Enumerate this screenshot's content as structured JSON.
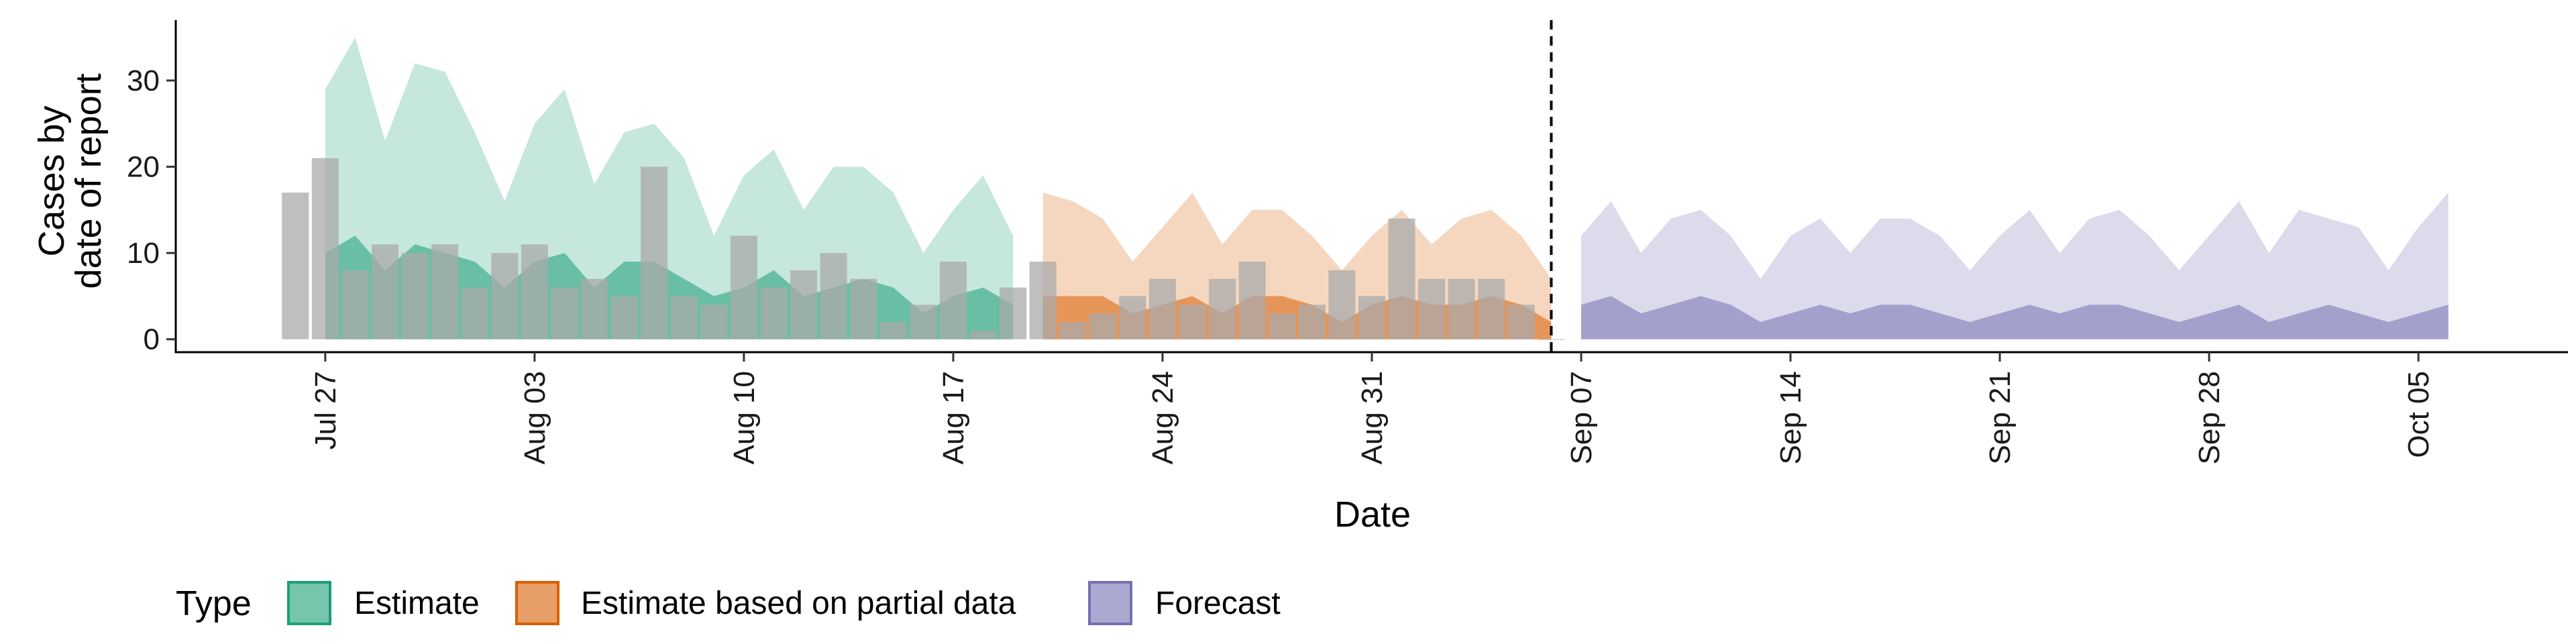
{
  "chart_data": {
    "type": "area",
    "xlabel": "Date",
    "ylabel_lines": [
      "Cases by",
      "date of report"
    ],
    "ylim": [
      -1.5,
      37
    ],
    "y_ticks": [
      0,
      10,
      20,
      30
    ],
    "x_range": [
      "2021-07-22",
      "2021-10-10"
    ],
    "x_ticks": [
      {
        "date": "2021-07-27",
        "label": "Jul 27"
      },
      {
        "date": "2021-08-03",
        "label": "Aug 03"
      },
      {
        "date": "2021-08-10",
        "label": "Aug 10"
      },
      {
        "date": "2021-08-17",
        "label": "Aug 17"
      },
      {
        "date": "2021-08-24",
        "label": "Aug 24"
      },
      {
        "date": "2021-08-31",
        "label": "Aug 31"
      },
      {
        "date": "2021-09-07",
        "label": "Sep 07"
      },
      {
        "date": "2021-09-14",
        "label": "Sep 14"
      },
      {
        "date": "2021-09-21",
        "label": "Sep 21"
      },
      {
        "date": "2021-09-28",
        "label": "Sep 28"
      },
      {
        "date": "2021-10-05",
        "label": "Oct 05"
      }
    ],
    "vline_date": "2021-09-06",
    "legend": {
      "title": "Type",
      "placement": "bottom-left",
      "entries": [
        {
          "label": "Estimate",
          "fill": "#1b9e77",
          "stroke": "#1b9e77"
        },
        {
          "label": "Estimate based on partial data",
          "fill": "#d95f02",
          "stroke": "#d95f02"
        },
        {
          "label": "Forecast",
          "fill": "#7570b3",
          "stroke": "#7570b3"
        }
      ]
    },
    "colors": {
      "bars": "#a9a9a9",
      "axis": "#000000",
      "vline": "#000000"
    },
    "reported_cases": {
      "dates": [
        "2021-07-26",
        "2021-07-27",
        "2021-07-28",
        "2021-07-29",
        "2021-07-30",
        "2021-07-31",
        "2021-08-01",
        "2021-08-02",
        "2021-08-03",
        "2021-08-04",
        "2021-08-05",
        "2021-08-06",
        "2021-08-07",
        "2021-08-08",
        "2021-08-09",
        "2021-08-10",
        "2021-08-11",
        "2021-08-12",
        "2021-08-13",
        "2021-08-14",
        "2021-08-15",
        "2021-08-16",
        "2021-08-17",
        "2021-08-18",
        "2021-08-19",
        "2021-08-20",
        "2021-08-21",
        "2021-08-22",
        "2021-08-23",
        "2021-08-24",
        "2021-08-25",
        "2021-08-26",
        "2021-08-27",
        "2021-08-28",
        "2021-08-29",
        "2021-08-30",
        "2021-08-31",
        "2021-09-01",
        "2021-09-02",
        "2021-09-03",
        "2021-09-04",
        "2021-09-05",
        "2021-09-06"
      ],
      "values": [
        17,
        21,
        8,
        11,
        10,
        11,
        6,
        10,
        11,
        6,
        7,
        5,
        20,
        5,
        4,
        12,
        6,
        8,
        10,
        7,
        2,
        4,
        9,
        1,
        6,
        9,
        2,
        3,
        5,
        7,
        4,
        7,
        9,
        3,
        4,
        8,
        5,
        14,
        7,
        7,
        7,
        4,
        0
      ]
    },
    "series": [
      {
        "name": "Estimate",
        "dates": [
          "2021-07-27",
          "2021-07-28",
          "2021-07-29",
          "2021-07-30",
          "2021-07-31",
          "2021-08-01",
          "2021-08-02",
          "2021-08-03",
          "2021-08-04",
          "2021-08-05",
          "2021-08-06",
          "2021-08-07",
          "2021-08-08",
          "2021-08-09",
          "2021-08-10",
          "2021-08-11",
          "2021-08-12",
          "2021-08-13",
          "2021-08-14",
          "2021-08-15",
          "2021-08-16",
          "2021-08-17",
          "2021-08-18",
          "2021-08-19"
        ],
        "inner_lower": [
          0,
          0,
          0,
          0,
          0,
          0,
          0,
          0,
          0,
          0,
          0,
          0,
          0,
          0,
          0,
          0,
          0,
          0,
          0,
          0,
          0,
          0,
          0,
          0
        ],
        "inner_upper": [
          10,
          12,
          8,
          11,
          10,
          9,
          6,
          9,
          10,
          6,
          9,
          9,
          7,
          5,
          6,
          8,
          5,
          6,
          7,
          6,
          3,
          5,
          6,
          4
        ],
        "outer_lower": [
          0,
          0,
          0,
          0,
          0,
          0,
          0,
          0,
          0,
          0,
          0,
          0,
          0,
          0,
          0,
          0,
          0,
          0,
          0,
          0,
          0,
          0,
          0,
          0
        ],
        "outer_upper": [
          29,
          35,
          23,
          32,
          31,
          24,
          16,
          25,
          29,
          18,
          24,
          25,
          21,
          12,
          19,
          22,
          15,
          20,
          20,
          17,
          10,
          15,
          19,
          12
        ]
      },
      {
        "name": "Estimate based on partial data",
        "dates": [
          "2021-08-20",
          "2021-08-21",
          "2021-08-22",
          "2021-08-23",
          "2021-08-24",
          "2021-08-25",
          "2021-08-26",
          "2021-08-27",
          "2021-08-28",
          "2021-08-29",
          "2021-08-30",
          "2021-08-31",
          "2021-09-01",
          "2021-09-02",
          "2021-09-03",
          "2021-09-04",
          "2021-09-05",
          "2021-09-06"
        ],
        "inner_lower": [
          0,
          0,
          0,
          0,
          0,
          0,
          0,
          0,
          0,
          0,
          0,
          0,
          0,
          0,
          0,
          0,
          0,
          0
        ],
        "inner_upper": [
          5,
          5,
          5,
          3,
          4,
          5,
          3,
          5,
          5,
          4,
          2,
          4,
          5,
          4,
          4,
          5,
          4,
          2
        ],
        "outer_lower": [
          0,
          0,
          0,
          0,
          0,
          0,
          0,
          0,
          0,
          0,
          0,
          0,
          0,
          0,
          0,
          0,
          0,
          0
        ],
        "outer_upper": [
          17,
          16,
          14,
          9,
          13,
          17,
          11,
          15,
          15,
          12,
          8,
          12,
          15,
          11,
          14,
          15,
          12,
          7
        ]
      },
      {
        "name": "Forecast",
        "dates": [
          "2021-09-07",
          "2021-09-08",
          "2021-09-09",
          "2021-09-10",
          "2021-09-11",
          "2021-09-12",
          "2021-09-13",
          "2021-09-14",
          "2021-09-15",
          "2021-09-16",
          "2021-09-17",
          "2021-09-18",
          "2021-09-19",
          "2021-09-20",
          "2021-09-21",
          "2021-09-22",
          "2021-09-23",
          "2021-09-24",
          "2021-09-25",
          "2021-09-26",
          "2021-09-27",
          "2021-09-28",
          "2021-09-29",
          "2021-09-30",
          "2021-10-01",
          "2021-10-02",
          "2021-10-03",
          "2021-10-04",
          "2021-10-05",
          "2021-10-06"
        ],
        "inner_lower": [
          0,
          0,
          0,
          0,
          0,
          0,
          0,
          0,
          0,
          0,
          0,
          0,
          0,
          0,
          0,
          0,
          0,
          0,
          0,
          0,
          0,
          0,
          0,
          0,
          0,
          0,
          0,
          0,
          0,
          0
        ],
        "inner_upper": [
          4,
          5,
          3,
          4,
          5,
          4,
          2,
          3,
          4,
          3,
          4,
          4,
          3,
          2,
          3,
          4,
          3,
          4,
          4,
          3,
          2,
          3,
          4,
          2,
          3,
          4,
          3,
          2,
          3,
          4
        ],
        "outer_lower": [
          0,
          0,
          0,
          0,
          0,
          0,
          0,
          0,
          0,
          0,
          0,
          0,
          0,
          0,
          0,
          0,
          0,
          0,
          0,
          0,
          0,
          0,
          0,
          0,
          0,
          0,
          0,
          0,
          0,
          0
        ],
        "outer_upper": [
          12,
          16,
          10,
          14,
          15,
          12,
          7,
          12,
          14,
          10,
          14,
          14,
          12,
          8,
          12,
          15,
          10,
          14,
          15,
          12,
          8,
          12,
          16,
          10,
          15,
          14,
          13,
          8,
          13,
          17
        ]
      }
    ]
  }
}
